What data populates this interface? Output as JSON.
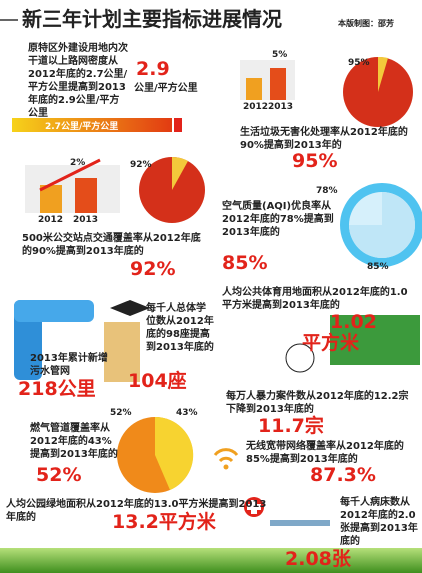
{
  "header": {
    "title": "新三年计划主要指标进展情况",
    "credit": "本版制图：邵芳"
  },
  "road": {
    "text": "原特区外建设用地内次干道以上路网密度从2012年底的2.7公里/平方公里提高到2013年底的2.9公里/平方公里",
    "big": "2.9",
    "unit": "公里/平方公里",
    "bar_label": "2.7公里/平方公里"
  },
  "garbage": {
    "bar_label": "5%",
    "years": [
      "2012",
      "2013"
    ],
    "pie_label": "95%",
    "text": "生活垃圾无害化处理率从2012年底的90%提高到2013年的",
    "big": "95%"
  },
  "bus": {
    "bar_label": "2%",
    "years": [
      "2012",
      "2013"
    ],
    "pie_label": "92%",
    "text": "500米公交站点交通覆盖率从2012年底的90%提高到2013年底的",
    "big": "92%"
  },
  "air": {
    "label_2012": "78%",
    "label_2013": "85%",
    "text": "空气质量(AQI)优良率从2012年底的78%提高到2013年底的",
    "big": "85%"
  },
  "sewer": {
    "text": "2013年累计新增污水管网",
    "big": "218公里"
  },
  "school": {
    "text": "每千人总体学位数从2012年底的98座提高到2013年底的",
    "big": "104座"
  },
  "sports": {
    "text": "人均公共体育用地面积从2012年底的1.0平方米提高到2013年底的",
    "big": "1.02",
    "unit": "平方米"
  },
  "crime": {
    "text": "每万人暴力案件数从2012年底的12.2宗下降到2013年底的",
    "big": "11.7宗"
  },
  "gas": {
    "label_2013": "52%",
    "label_2012": "43%",
    "text": "燃气管道覆盖率从2012年底的43%提高到2013年底的",
    "big": "52%"
  },
  "broadband": {
    "text": "无线宽带网络覆盖率从2012年底的85%提高到2013年底的",
    "big": "87.3%"
  },
  "green": {
    "text": "人均公园绿地面积从2012年底的13.0平方米提高到2013年底的",
    "big": "13.2平方米"
  },
  "hospital": {
    "text": "每千人病床数从2012年底的2.0张提高到2013年底的",
    "big": "2.08张"
  }
}
